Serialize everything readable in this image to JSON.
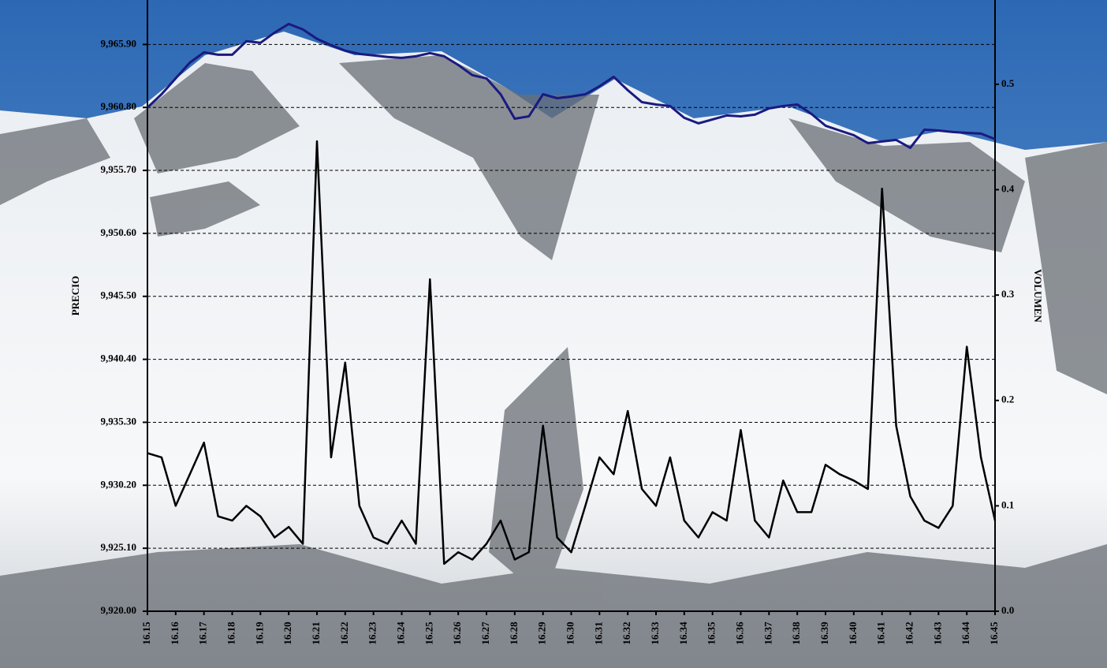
{
  "chart_data": {
    "type": "line",
    "categories": [
      "16.15",
      null,
      "16.16",
      null,
      "16.17",
      null,
      "16.18",
      null,
      "16.19",
      null,
      "16.20",
      null,
      "16.21",
      null,
      "16.22",
      null,
      "16.23",
      null,
      "16.24",
      null,
      "16.25",
      null,
      "16.26",
      null,
      "16.27",
      null,
      "16.28",
      null,
      "16.29",
      null,
      "16.30",
      null,
      "16.31",
      null,
      "16.32",
      null,
      "16.33",
      null,
      "16.34",
      null,
      "16.35",
      null,
      "16.36",
      null,
      "16.37",
      null,
      "16.38",
      null,
      "16.39",
      null,
      "16.40",
      null,
      "16.41",
      null,
      "16.42",
      null,
      "16.43",
      null,
      "16.44",
      null,
      "16.45"
    ],
    "ylabel": "PRECIO",
    "y2label": "VOLUMEN",
    "ylim": [
      9920,
      9969.5
    ],
    "yticks": [
      {
        "value": 9920,
        "label": "9,920.00"
      },
      {
        "value": 9925.1,
        "label": "9,925.10"
      },
      {
        "value": 9930.2,
        "label": "9,930.20"
      },
      {
        "value": 9935.3,
        "label": "9,935.30"
      },
      {
        "value": 9940.4,
        "label": "9,940.40"
      },
      {
        "value": 9945.5,
        "label": "9,945.50"
      },
      {
        "value": 9950.6,
        "label": "9,950.60"
      },
      {
        "value": 9955.7,
        "label": "9,955.70"
      },
      {
        "value": 9960.8,
        "label": "9,960.80"
      },
      {
        "value": 9965.9,
        "label": "9,965.90"
      }
    ],
    "y2lim": [
      0,
      0.58
    ],
    "y2ticks": [
      {
        "value": 0,
        "label": "0.0"
      },
      0.1,
      0.2,
      0.3,
      0.4,
      0.5
    ],
    "grid": true,
    "series": [
      {
        "name": "PRECIO",
        "color": "#1a1a80",
        "values": [
          9960.79,
          9961.87,
          9963.15,
          9964.43,
          9965.26,
          9965.07,
          9965.07,
          9966.16,
          9966.03,
          9966.86,
          9967.56,
          9967.12,
          9966.35,
          9965.84,
          9965.39,
          9965.13,
          9965.01,
          9964.88,
          9964.81,
          9964.94,
          9965.2,
          9964.94,
          9964.24,
          9963.41,
          9963.15,
          9961.87,
          9959.89,
          9960.08,
          9961.87,
          9961.55,
          9961.68,
          9961.87,
          9962.51,
          9963.28,
          9962.19,
          9961.23,
          9961.04,
          9960.91,
          9959.96,
          9959.51,
          9959.83,
          9960.15,
          9960.08,
          9960.21,
          9960.72,
          9960.91,
          9961.04,
          9960.28,
          9959.32,
          9958.93,
          9958.55,
          9957.91,
          9958.04,
          9958.17,
          9957.53,
          9959.0,
          9958.93,
          9958.81,
          9958.74,
          9958.68,
          9958.23
        ]
      },
      {
        "name": "VOLUMEN",
        "color": "#000000",
        "axis": "y2",
        "values": [
          0.15,
          0.146,
          0.1,
          0.13,
          0.16,
          0.09,
          0.086,
          0.1,
          0.09,
          0.07,
          0.08,
          0.064,
          0.446,
          0.146,
          0.236,
          0.1,
          0.07,
          0.064,
          0.086,
          0.064,
          0.315,
          0.045,
          0.056,
          0.049,
          0.064,
          0.086,
          0.049,
          0.056,
          0.176,
          0.07,
          0.056,
          0.1,
          0.146,
          0.13,
          0.19,
          0.116,
          0.1,
          0.146,
          0.086,
          0.07,
          0.094,
          0.086,
          0.172,
          0.086,
          0.07,
          0.124,
          0.094,
          0.094,
          0.139,
          0.13,
          0.124,
          0.116,
          0.401,
          0.176,
          0.109,
          0.086,
          0.079,
          0.1,
          0.251,
          0.146,
          0.086
        ]
      }
    ]
  }
}
